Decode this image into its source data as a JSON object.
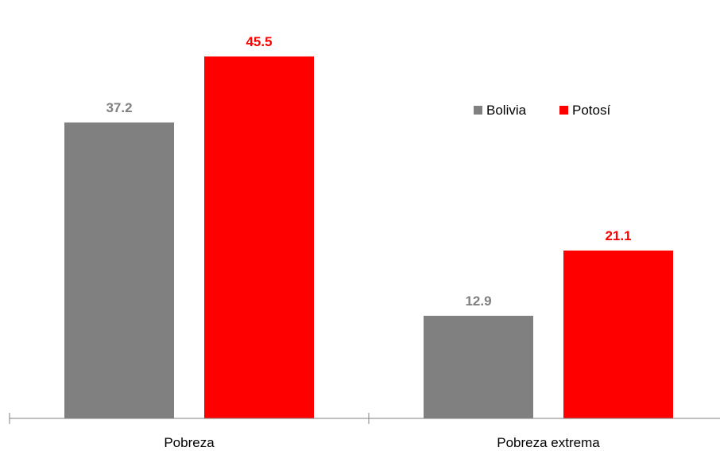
{
  "chart_data": {
    "type": "bar",
    "title": "",
    "xlabel": "",
    "ylabel": "",
    "categories": [
      "Pobreza",
      "Pobreza extrema"
    ],
    "series": [
      {
        "name": "Bolivia",
        "values": [
          37.2,
          12.9
        ],
        "color": "#808080"
      },
      {
        "name": "Potosí",
        "values": [
          45.5,
          21.1
        ],
        "color": "#ff0000"
      }
    ],
    "value_labels": [
      [
        "37.2",
        "12.9"
      ],
      [
        "45.5",
        "21.1"
      ]
    ],
    "ylim": [
      0,
      48.5
    ],
    "grid": false,
    "legend_position": "right"
  }
}
